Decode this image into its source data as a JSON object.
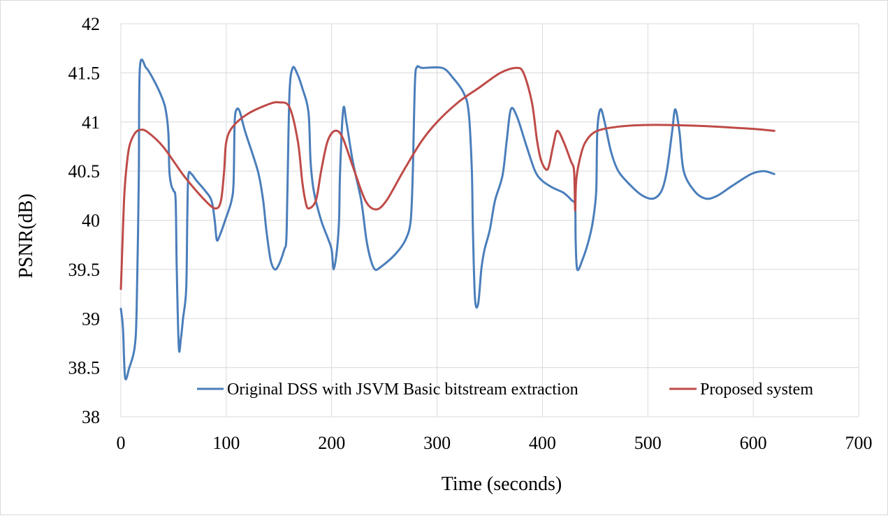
{
  "chart_data": {
    "type": "line",
    "title": "",
    "xlabel": "Time (seconds)",
    "ylabel": "PSNR(dB)",
    "xlim": [
      0,
      700
    ],
    "ylim": [
      38,
      42
    ],
    "xticks": [
      0,
      100,
      200,
      300,
      400,
      500,
      600,
      700
    ],
    "yticks": [
      38,
      38.5,
      39,
      39.5,
      40,
      40.5,
      41,
      41.5,
      42
    ],
    "ytick_labels": [
      "38",
      "38.5",
      "39",
      "39.5",
      "40",
      "40.5",
      "41",
      "41.5",
      "42"
    ],
    "xtick_labels": [
      "0",
      "100",
      "200",
      "300",
      "400",
      "500",
      "600",
      "700"
    ],
    "grid": true,
    "legend_position": "bottom-inside",
    "series": [
      {
        "name": "Original DSS with JSVM Basic bitstream extraction",
        "color": "#4a7ebb",
        "points": [
          [
            0,
            39.1
          ],
          [
            2,
            38.9
          ],
          [
            4,
            38.4
          ],
          [
            8,
            38.5
          ],
          [
            13,
            38.7
          ],
          [
            15,
            39.1
          ],
          [
            17,
            40.4
          ],
          [
            18,
            41.55
          ],
          [
            24,
            41.55
          ],
          [
            30,
            41.45
          ],
          [
            37,
            41.3
          ],
          [
            42,
            41.15
          ],
          [
            45,
            40.9
          ],
          [
            46,
            40.5
          ],
          [
            48,
            40.35
          ],
          [
            50,
            40.3
          ],
          [
            52,
            40.2
          ],
          [
            53,
            39.5
          ],
          [
            55,
            38.7
          ],
          [
            57,
            38.8
          ],
          [
            59,
            39.0
          ],
          [
            62,
            39.3
          ],
          [
            63,
            40.0
          ],
          [
            64,
            40.45
          ],
          [
            67,
            40.47
          ],
          [
            72,
            40.4
          ],
          [
            80,
            40.3
          ],
          [
            86,
            40.2
          ],
          [
            89,
            40.0
          ],
          [
            91,
            39.8
          ],
          [
            94,
            39.85
          ],
          [
            99,
            40.0
          ],
          [
            105,
            40.2
          ],
          [
            107,
            40.4
          ],
          [
            108,
            41.0
          ],
          [
            110,
            41.13
          ],
          [
            113,
            41.1
          ],
          [
            118,
            40.9
          ],
          [
            130,
            40.5
          ],
          [
            135,
            40.2
          ],
          [
            138,
            39.9
          ],
          [
            142,
            39.6
          ],
          [
            146,
            39.5
          ],
          [
            150,
            39.55
          ],
          [
            155,
            39.7
          ],
          [
            157,
            39.8
          ],
          [
            158,
            40.3
          ],
          [
            160,
            41.3
          ],
          [
            163,
            41.55
          ],
          [
            167,
            41.5
          ],
          [
            172,
            41.35
          ],
          [
            178,
            41.1
          ],
          [
            180,
            40.6
          ],
          [
            183,
            40.3
          ],
          [
            190,
            40.0
          ],
          [
            197,
            39.8
          ],
          [
            200,
            39.7
          ],
          [
            202,
            39.5
          ],
          [
            205,
            39.7
          ],
          [
            207,
            40.0
          ],
          [
            208,
            40.5
          ],
          [
            211,
            41.13
          ],
          [
            214,
            41.0
          ],
          [
            220,
            40.6
          ],
          [
            228,
            40.2
          ],
          [
            233,
            39.8
          ],
          [
            237,
            39.6
          ],
          [
            241,
            39.5
          ],
          [
            246,
            39.52
          ],
          [
            260,
            39.65
          ],
          [
            270,
            39.8
          ],
          [
            275,
            40.0
          ],
          [
            277,
            40.5
          ],
          [
            279,
            41.4
          ],
          [
            281,
            41.56
          ],
          [
            286,
            41.55
          ],
          [
            305,
            41.55
          ],
          [
            315,
            41.45
          ],
          [
            325,
            41.3
          ],
          [
            330,
            41.1
          ],
          [
            333,
            40.5
          ],
          [
            334,
            39.9
          ],
          [
            336,
            39.2
          ],
          [
            339,
            39.15
          ],
          [
            342,
            39.5
          ],
          [
            345,
            39.7
          ],
          [
            350,
            39.9
          ],
          [
            355,
            40.2
          ],
          [
            362,
            40.45
          ],
          [
            366,
            40.8
          ],
          [
            370,
            41.13
          ],
          [
            376,
            41.05
          ],
          [
            385,
            40.75
          ],
          [
            393,
            40.5
          ],
          [
            400,
            40.4
          ],
          [
            410,
            40.33
          ],
          [
            420,
            40.28
          ],
          [
            428,
            40.2
          ],
          [
            431,
            40.15
          ],
          [
            431.5,
            39.8
          ],
          [
            433,
            39.5
          ],
          [
            438,
            39.6
          ],
          [
            444,
            39.8
          ],
          [
            448,
            40.0
          ],
          [
            451,
            40.3
          ],
          [
            452,
            40.9
          ],
          [
            455,
            41.13
          ],
          [
            459,
            41.0
          ],
          [
            465,
            40.7
          ],
          [
            472,
            40.5
          ],
          [
            484,
            40.35
          ],
          [
            495,
            40.25
          ],
          [
            505,
            40.22
          ],
          [
            513,
            40.3
          ],
          [
            518,
            40.5
          ],
          [
            523,
            40.9
          ],
          [
            526,
            41.13
          ],
          [
            530,
            40.9
          ],
          [
            534,
            40.5
          ],
          [
            544,
            40.3
          ],
          [
            555,
            40.22
          ],
          [
            566,
            40.25
          ],
          [
            580,
            40.35
          ],
          [
            598,
            40.47
          ],
          [
            610,
            40.5
          ],
          [
            620,
            40.47
          ]
        ]
      },
      {
        "name": "Proposed system",
        "color": "#be4b48",
        "points": [
          [
            0,
            39.3
          ],
          [
            1,
            39.6
          ],
          [
            3,
            40.2
          ],
          [
            5,
            40.5
          ],
          [
            8,
            40.75
          ],
          [
            13,
            40.88
          ],
          [
            18,
            40.92
          ],
          [
            25,
            40.9
          ],
          [
            40,
            40.75
          ],
          [
            60,
            40.45
          ],
          [
            80,
            40.2
          ],
          [
            90,
            40.12
          ],
          [
            95,
            40.2
          ],
          [
            98,
            40.5
          ],
          [
            100,
            40.8
          ],
          [
            106,
            40.95
          ],
          [
            120,
            41.08
          ],
          [
            140,
            41.18
          ],
          [
            150,
            41.2
          ],
          [
            160,
            41.15
          ],
          [
            168,
            40.8
          ],
          [
            172,
            40.4
          ],
          [
            175,
            40.2
          ],
          [
            178,
            40.12
          ],
          [
            185,
            40.2
          ],
          [
            190,
            40.5
          ],
          [
            196,
            40.8
          ],
          [
            203,
            40.91
          ],
          [
            210,
            40.85
          ],
          [
            220,
            40.55
          ],
          [
            232,
            40.2
          ],
          [
            242,
            40.11
          ],
          [
            252,
            40.2
          ],
          [
            268,
            40.5
          ],
          [
            285,
            40.8
          ],
          [
            300,
            41.0
          ],
          [
            320,
            41.2
          ],
          [
            340,
            41.35
          ],
          [
            360,
            41.5
          ],
          [
            375,
            41.55
          ],
          [
            382,
            41.5
          ],
          [
            390,
            41.2
          ],
          [
            395,
            40.8
          ],
          [
            399,
            40.6
          ],
          [
            405,
            40.52
          ],
          [
            410,
            40.75
          ],
          [
            414,
            40.91
          ],
          [
            420,
            40.8
          ],
          [
            427,
            40.6
          ],
          [
            430,
            40.5
          ],
          [
            431,
            40.1
          ],
          [
            432,
            40.4
          ],
          [
            435,
            40.6
          ],
          [
            440,
            40.78
          ],
          [
            450,
            40.9
          ],
          [
            470,
            40.95
          ],
          [
            500,
            40.97
          ],
          [
            550,
            40.96
          ],
          [
            600,
            40.93
          ],
          [
            620,
            40.91
          ]
        ]
      }
    ]
  }
}
